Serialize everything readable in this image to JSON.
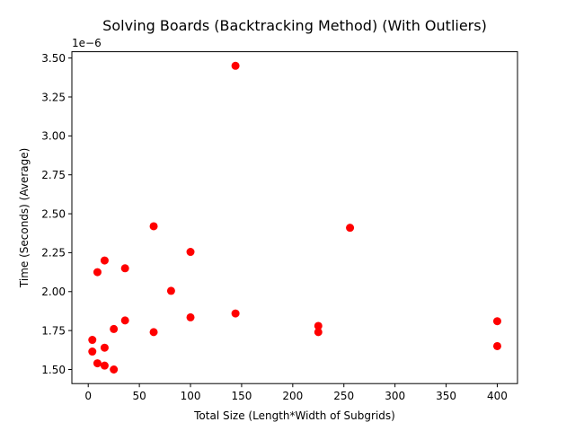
{
  "chart_data": {
    "type": "scatter",
    "title": "Solving Boards (Backtracking Method) (With Outliers)",
    "xlabel": "Total Size (Length*Width of Subgrids)",
    "ylabel": "Time (Seconds) (Average)",
    "y_offset_label": "1e−6",
    "xlim": [
      -16,
      419.8
    ],
    "ylim": [
      1.4095,
      3.5405
    ],
    "x_ticks": [
      0,
      50,
      100,
      150,
      200,
      250,
      300,
      350,
      400
    ],
    "x_tick_labels": [
      "0",
      "50",
      "100",
      "150",
      "200",
      "250",
      "300",
      "350",
      "400"
    ],
    "y_ticks": [
      1.5,
      1.75,
      2.0,
      2.25,
      2.5,
      2.75,
      3.0,
      3.25,
      3.5
    ],
    "y_tick_labels": [
      "1.50",
      "1.75",
      "2.00",
      "2.25",
      "2.50",
      "2.75",
      "3.00",
      "3.25",
      "3.50"
    ],
    "marker_color": "#ff0000",
    "grid": false,
    "series": [
      {
        "points": [
          {
            "x": 4,
            "y": 1.69
          },
          {
            "x": 4,
            "y": 1.615
          },
          {
            "x": 9,
            "y": 2.125
          },
          {
            "x": 9,
            "y": 1.54
          },
          {
            "x": 16,
            "y": 2.2
          },
          {
            "x": 16,
            "y": 1.64
          },
          {
            "x": 16,
            "y": 1.525
          },
          {
            "x": 25,
            "y": 1.76
          },
          {
            "x": 25,
            "y": 1.5
          },
          {
            "x": 36,
            "y": 2.15
          },
          {
            "x": 36,
            "y": 1.815
          },
          {
            "x": 64,
            "y": 2.42
          },
          {
            "x": 64,
            "y": 1.74
          },
          {
            "x": 81,
            "y": 2.005
          },
          {
            "x": 100,
            "y": 2.255
          },
          {
            "x": 100,
            "y": 1.835
          },
          {
            "x": 144,
            "y": 3.45
          },
          {
            "x": 144,
            "y": 1.86
          },
          {
            "x": 225,
            "y": 1.78
          },
          {
            "x": 225,
            "y": 1.74
          },
          {
            "x": 256,
            "y": 2.41
          },
          {
            "x": 400,
            "y": 1.81
          },
          {
            "x": 400,
            "y": 1.65
          }
        ]
      }
    ]
  }
}
